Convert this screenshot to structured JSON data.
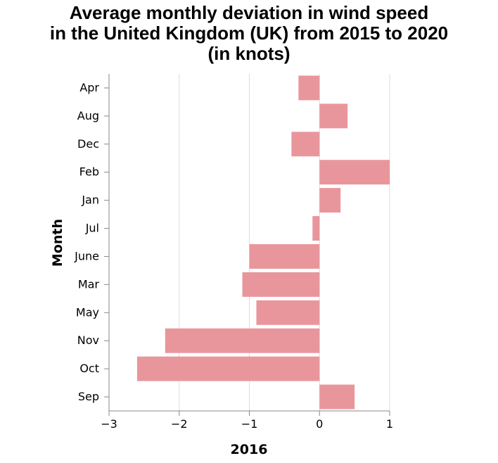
{
  "chart_data": {
    "type": "bar",
    "orientation": "horizontal",
    "title_lines": [
      "Average monthly deviation in wind speed",
      "in the United Kingdom (UK) from 2015 to 2020",
      "(in knots)"
    ],
    "xlabel": "2016",
    "ylabel": "Month",
    "categories": [
      "Apr",
      "Aug",
      "Dec",
      "Feb",
      "Jan",
      "Jul",
      "June",
      "Mar",
      "May",
      "Nov",
      "Oct",
      "Sep"
    ],
    "values": [
      -0.3,
      0.4,
      -0.4,
      1.0,
      0.3,
      -0.1,
      -1.0,
      -1.1,
      -0.9,
      -2.2,
      -2.6,
      0.5
    ],
    "xlim": [
      -3,
      1
    ],
    "xticks": [
      -3,
      -2,
      -1,
      0,
      1
    ],
    "xtick_labels": [
      "−3",
      "−2",
      "−1",
      "0",
      "1"
    ],
    "grid": true,
    "bar_color": "#e8969c",
    "grid_color": "#dddddd",
    "axis_color": "#888888"
  }
}
